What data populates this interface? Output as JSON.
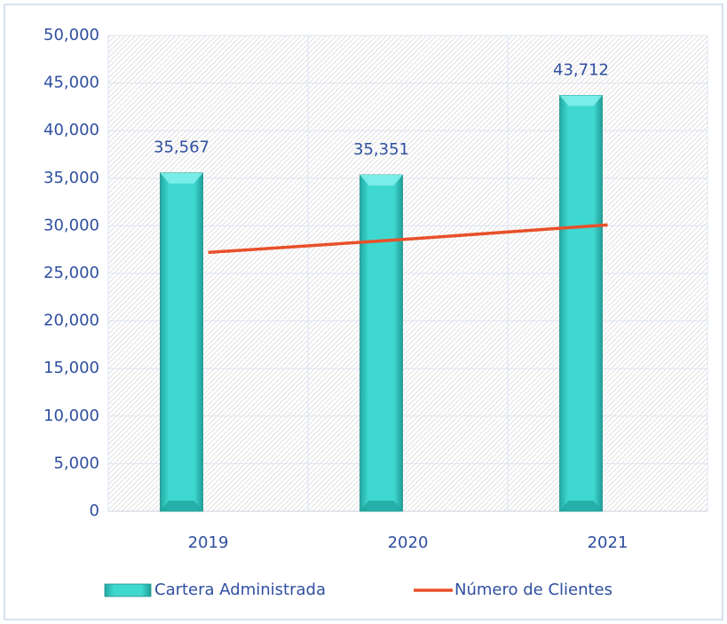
{
  "chart_data": {
    "type": "bar",
    "categories": [
      "2019",
      "2020",
      "2021"
    ],
    "series": [
      {
        "name": "Cartera Administrada",
        "type": "bar",
        "color": "#3fd8d0",
        "values": [
          35567,
          35351,
          43712
        ],
        "value_labels": [
          "35,567",
          "35,351",
          "43,712"
        ]
      },
      {
        "name": "Número de Clientes",
        "type": "line",
        "color": "#e8502a",
        "values": [
          27200,
          28600,
          30100
        ]
      }
    ],
    "ylim": [
      0,
      50000
    ],
    "yticks": [
      0,
      {
        "value": 5000,
        "label": "5,000"
      },
      {
        "value": 10000,
        "label": "10,000"
      },
      {
        "value": 15000,
        "label": "15,000"
      },
      {
        "value": 20000,
        "label": "20,000"
      },
      {
        "value": 25000,
        "label": "25,000"
      },
      {
        "value": 30000,
        "label": "30,000"
      },
      {
        "value": 35000,
        "label": "35,000"
      },
      {
        "value": 40000,
        "label": "40,000"
      },
      {
        "value": 45000,
        "label": "45,000"
      },
      {
        "value": 50000,
        "label": "50,000"
      }
    ],
    "grid": true,
    "legend": "bottom"
  }
}
